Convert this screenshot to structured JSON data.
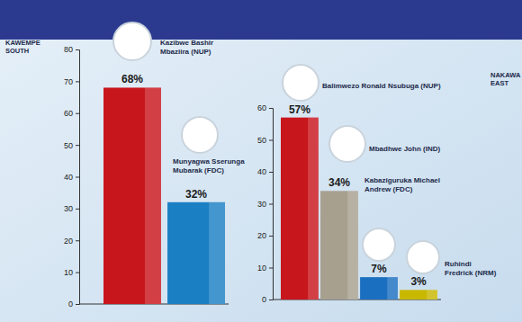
{
  "chart_data": [
    {
      "type": "bar",
      "title": "KAWEMPE SOUTH",
      "categories": [
        "Kazibwe Bashir Mbaziira (NUP)",
        "Munyagwa Sserunga Mubarak (FDC)"
      ],
      "values": [
        68,
        32
      ],
      "value_labels": [
        "68%",
        "32%"
      ],
      "colors": [
        "#c8161d",
        "#1b7fc4"
      ],
      "ylim": [
        0,
        80
      ],
      "yticks": [
        0,
        10,
        20,
        30,
        40,
        50,
        60,
        70,
        80
      ],
      "data_labels": true,
      "tick_labels": "y",
      "grid": false
    },
    {
      "type": "bar",
      "title": "NAKAWA EAST",
      "categories": [
        "Balimwezo Ronald Nsubuga (NUP)",
        "Mbadhwe John (IND)",
        "Kabaziguruka Michael Andrew (FDC)",
        "Ruhindi Fredrick (NRM)"
      ],
      "values": [
        57,
        34,
        7,
        3
      ],
      "value_labels": [
        "57%",
        "34%",
        "7%",
        "3%"
      ],
      "colors": [
        "#c8161d",
        "#a8a08f",
        "#1b6fc0",
        "#c9b800"
      ],
      "ylim": [
        0,
        60
      ],
      "yticks": [
        0,
        10,
        20,
        30,
        40,
        50,
        60
      ],
      "data_labels": true,
      "tick_labels": "y",
      "grid": false
    }
  ]
}
